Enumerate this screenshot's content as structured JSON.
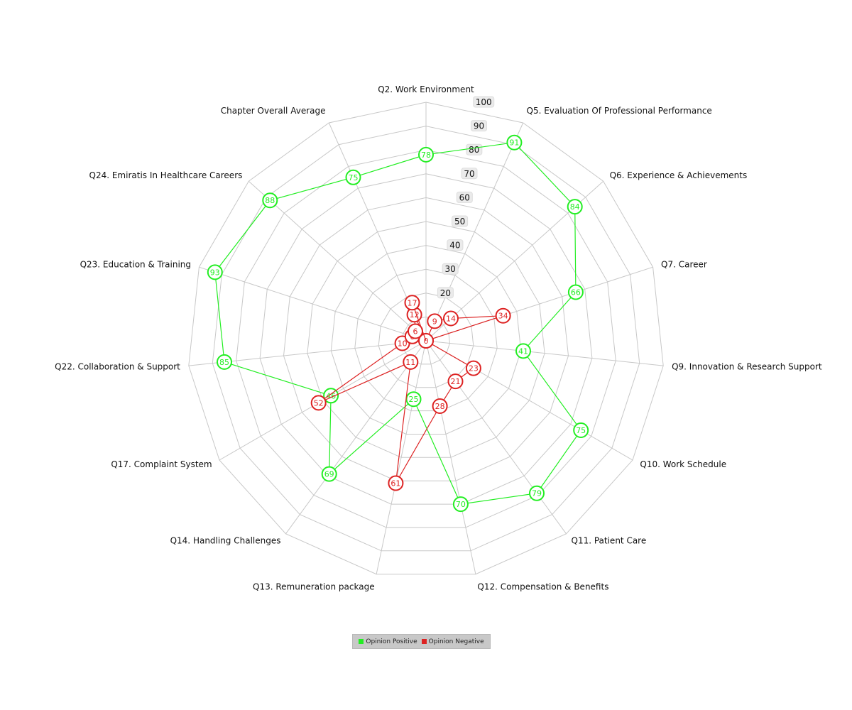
{
  "chart_data": {
    "type": "radar",
    "title": "",
    "r_range": [
      0,
      100
    ],
    "r_ticks": [
      20,
      30,
      40,
      50,
      60,
      70,
      80,
      90,
      100
    ],
    "axes": [
      "Q2. Work Environment",
      "Q5. Evaluation Of Professional Performance",
      "Q6. Experience & Achievements",
      "Q7. Career",
      "Q9. Innovation & Research Support",
      "Q10. Work Schedule",
      "Q11. Patient Care",
      "Q12. Compensation & Benefits",
      "Q13. Remuneration package",
      "Q14. Handling Challenges",
      "Q17. Complaint System",
      "Q22. Collaboration & Support",
      "Q23. Education & Training",
      "Q24. Emiratis In Healthcare Careers",
      "Chapter Overall Average"
    ],
    "series": [
      {
        "name": "Opinion Positive",
        "color": "#22ee22",
        "values": [
          78,
          91,
          84,
          66,
          41,
          75,
          79,
          70,
          25,
          69,
          46,
          85,
          93,
          88,
          75
        ]
      },
      {
        "name": "Opinion Negative",
        "color": "#dd2222",
        "values": [
          0,
          9,
          14,
          34,
          0,
          23,
          21,
          28,
          61,
          11,
          52,
          10,
          6,
          6,
          12
        ]
      }
    ],
    "extra_points": [
      {
        "series": 1,
        "value": 17,
        "angle_deg": -20
      }
    ],
    "grid": true,
    "legend_position": "bottom-center"
  }
}
